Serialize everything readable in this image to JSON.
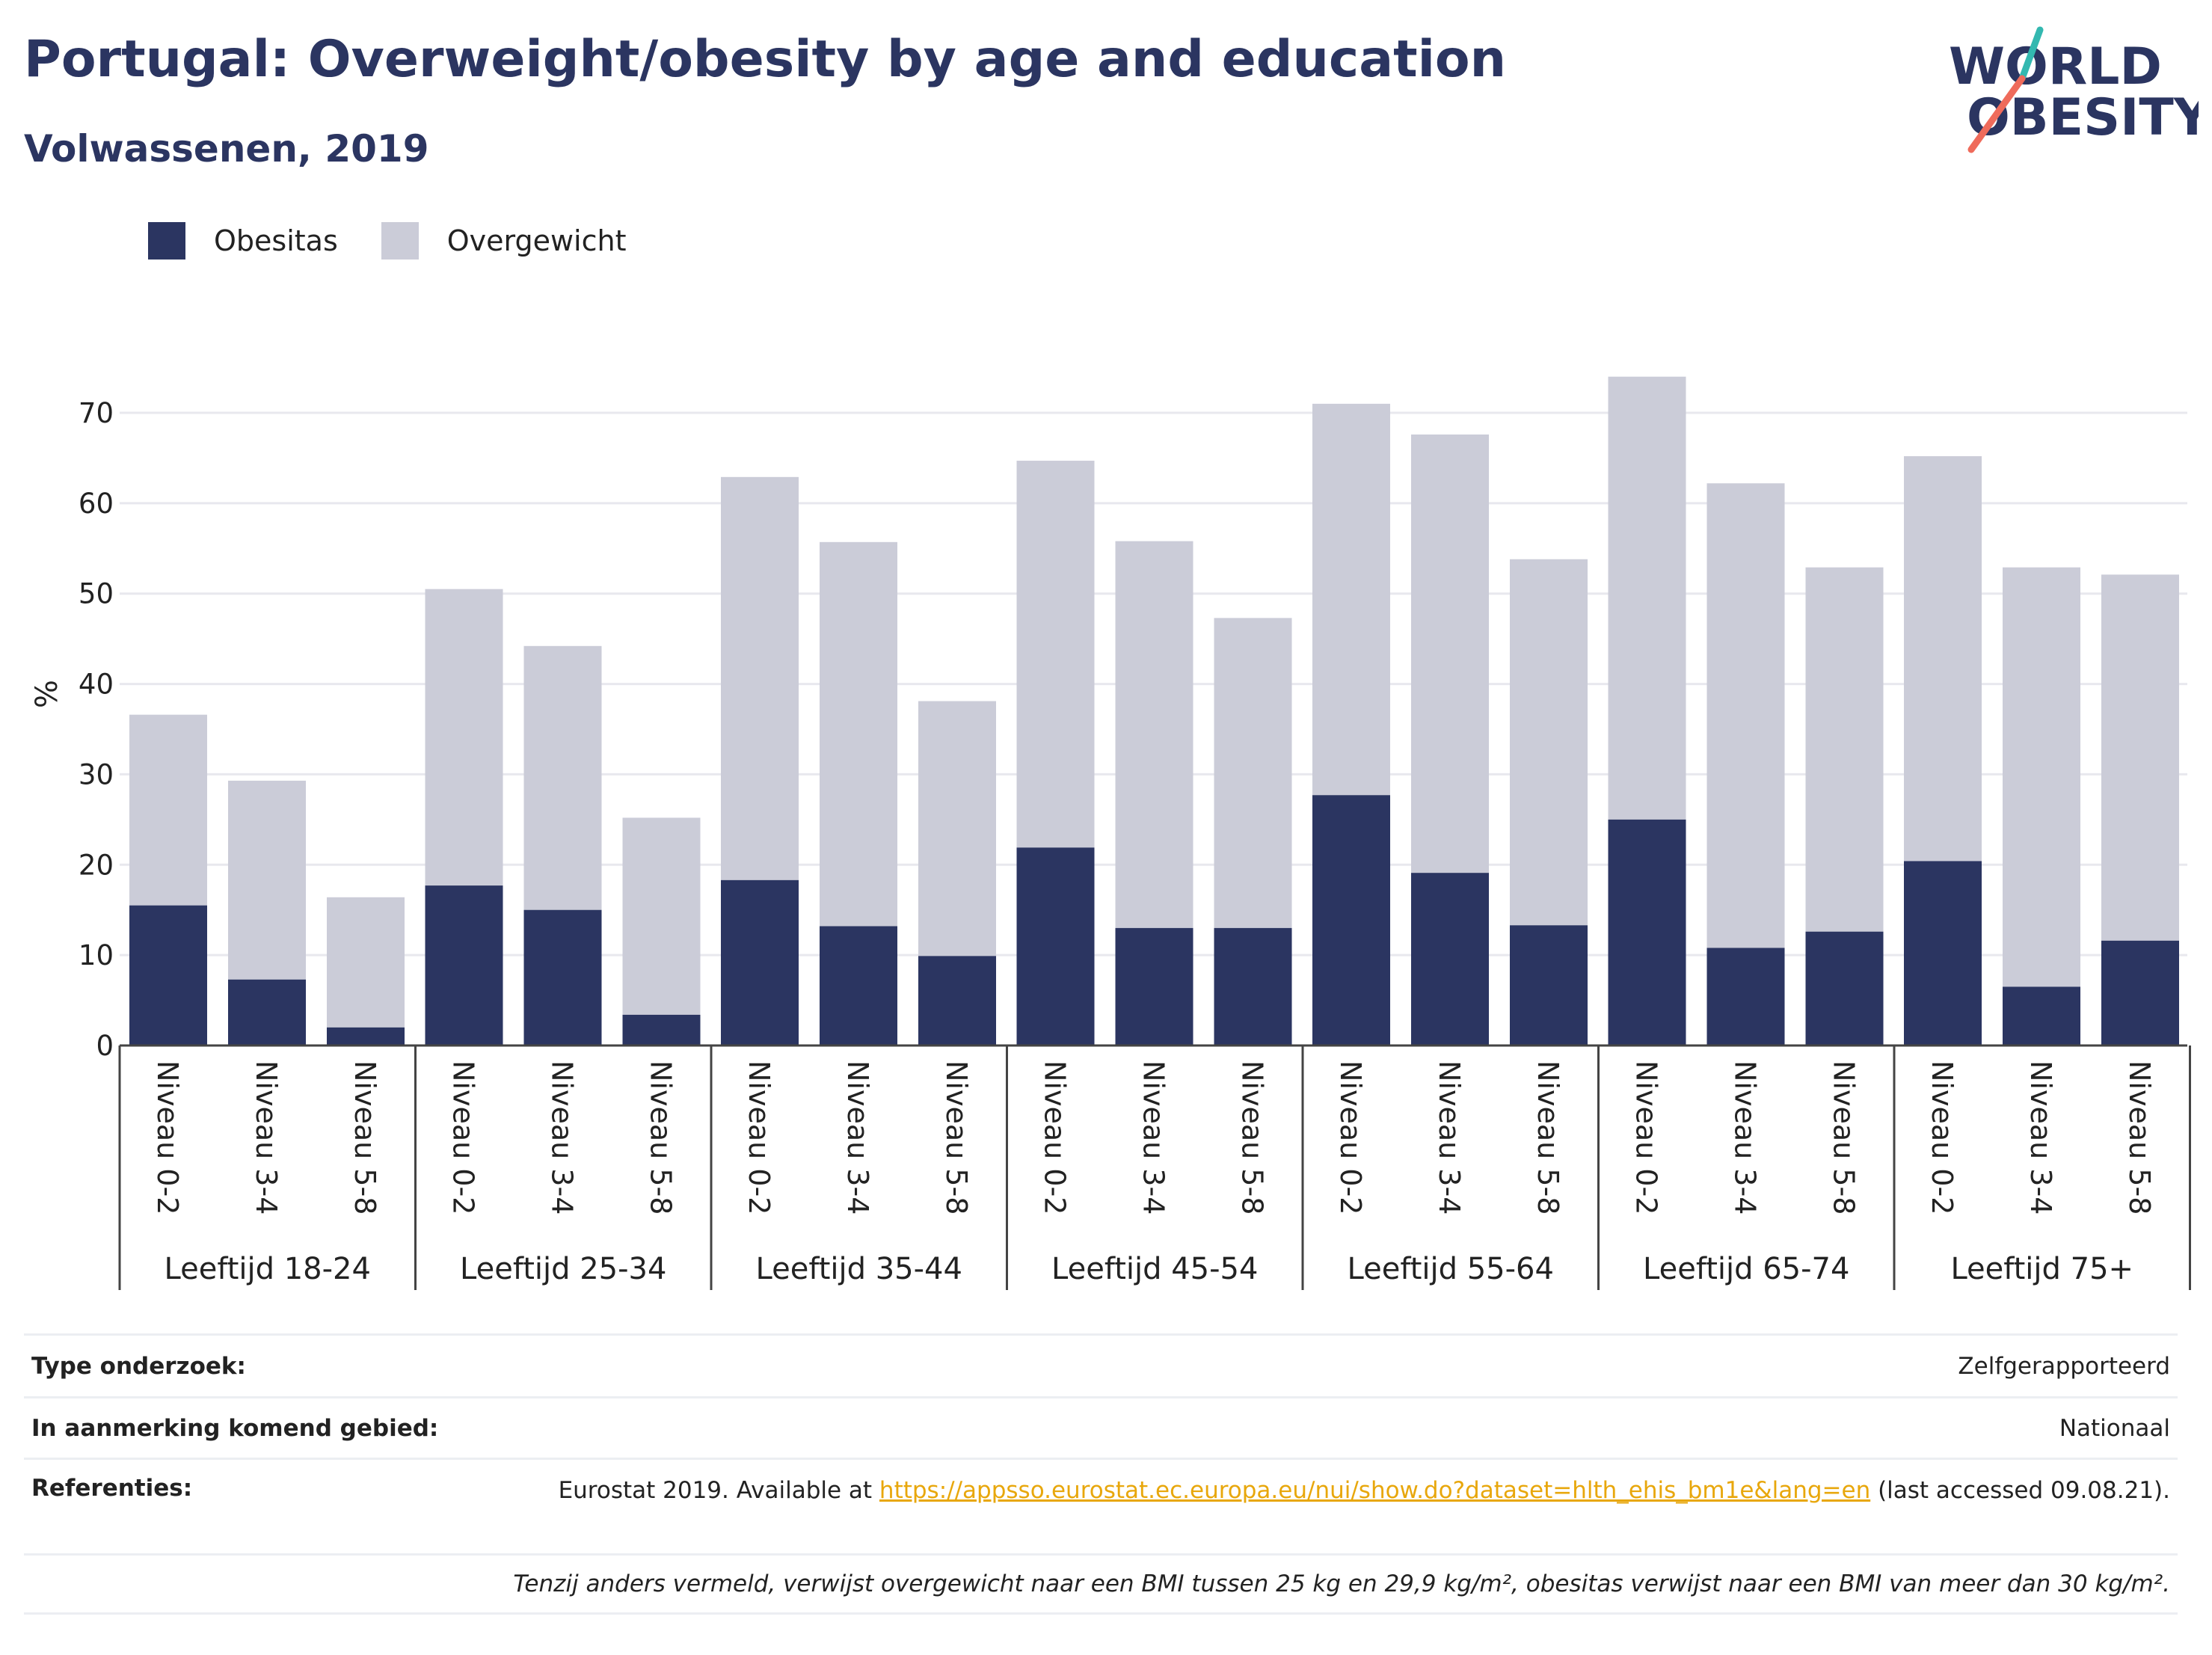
{
  "header": {
    "title": "Portugal: Overweight/obesity by age and education",
    "subtitle": "Volwassenen, 2019"
  },
  "logo": {
    "line1": "WORLD",
    "line2": "OBESITY",
    "icon": "world-obesity-logo",
    "accent_colors": [
      "#33b8b0",
      "#ef6b5b"
    ]
  },
  "colors": {
    "obesitas": "#2b3561",
    "overgewicht": "#cbccd8",
    "grid": "#e8e8ee",
    "axis": "#444444"
  },
  "chart_data": {
    "type": "bar",
    "stacked": true,
    "ylabel": "%",
    "ylim": [
      0,
      75
    ],
    "yticks": [
      0,
      10,
      20,
      30,
      40,
      50,
      60,
      70
    ],
    "grid": true,
    "legend_position": "top-left",
    "groups": [
      "Leeftijd 18-24",
      "Leeftijd 25-34",
      "Leeftijd 35-44",
      "Leeftijd 45-54",
      "Leeftijd 55-64",
      "Leeftijd 65-74",
      "Leeftijd 75+"
    ],
    "categories": [
      "Niveau 0-2",
      "Niveau 3-4",
      "Niveau 5-8"
    ],
    "series": [
      {
        "name": "Obesitas",
        "values": [
          [
            15.5,
            7.3,
            2.0
          ],
          [
            17.7,
            15.0,
            3.4
          ],
          [
            18.3,
            13.2,
            9.9
          ],
          [
            21.9,
            13.0,
            13.0
          ],
          [
            27.7,
            19.1,
            13.3
          ],
          [
            25.0,
            10.8,
            12.6
          ],
          [
            20.4,
            6.5,
            11.6
          ]
        ]
      },
      {
        "name": "Overgewicht",
        "values": [
          [
            21.1,
            22.0,
            14.4
          ],
          [
            32.8,
            29.2,
            21.8
          ],
          [
            44.6,
            42.5,
            28.2
          ],
          [
            42.8,
            42.8,
            34.3
          ],
          [
            43.3,
            48.5,
            40.5
          ],
          [
            49.0,
            51.4,
            40.3
          ],
          [
            44.8,
            46.4,
            40.5
          ]
        ]
      }
    ]
  },
  "info": {
    "rows": [
      {
        "label": "Type onderzoek:",
        "value": "Zelfgerapporteerd"
      },
      {
        "label": "In aanmerking komend gebied:",
        "value": "Nationaal"
      }
    ],
    "references": {
      "label": "Referenties:",
      "prefix": "Eurostat 2019. Available at ",
      "link": "https://appsso.eurostat.ec.europa.eu/nui/show.do?dataset=hlth_ehis_bm1e&lang=en",
      "suffix": " (last accessed 09.08.21)."
    },
    "footnote": "Tenzij anders vermeld, verwijst overgewicht naar een BMI tussen 25 kg en 29,9 kg/m², obesitas verwijst naar een BMI van meer dan 30 kg/m²."
  }
}
